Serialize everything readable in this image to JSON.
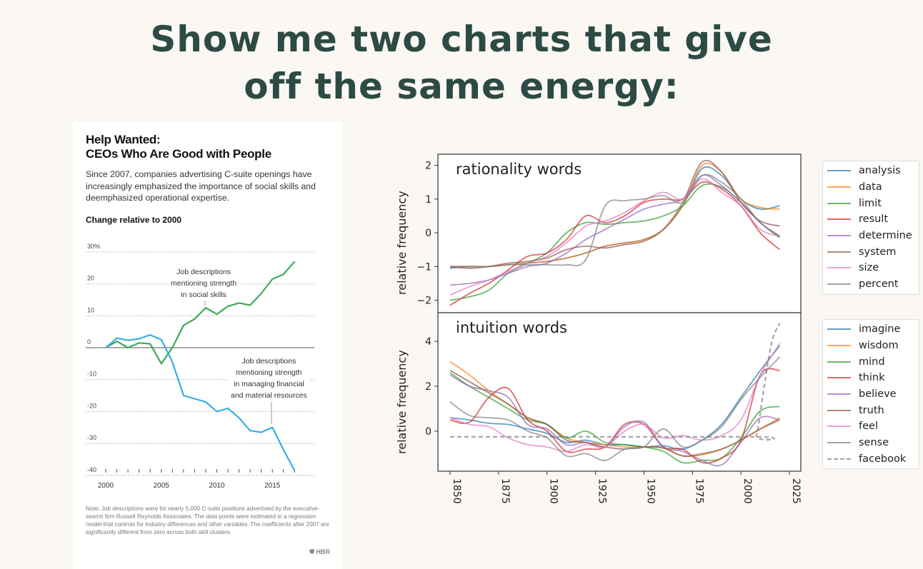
{
  "headline": {
    "line1": "Show me two charts that give",
    "line2": "off the same energy:"
  },
  "hbr": {
    "title_line1": "Help Wanted:",
    "title_line2": "CEOs Who Are Good with People",
    "subtitle": "Since 2007, companies advertising C-suite openings have increasingly emphasized the importance of social skills and deemphasized operational expertise.",
    "note": "Note: Job descriptions were for nearly 5,000 C-suite positions advertised by the executive-search firm Russell Reynolds Associates. The data points were estimated in a regression model that controls for industry differences and other variables. The coefficients after 2007 are significantly different from zero across both skill clusters.",
    "logo": "HBR"
  },
  "chart_data": [
    {
      "type": "line",
      "title": "Help Wanted: CEOs Who Are Good with People",
      "ylabel": "Change relative to 2000",
      "ylim": [
        -40,
        30
      ],
      "yticks": [
        "30%",
        "20",
        "10",
        "0",
        "-10",
        "-20",
        "-30",
        "-40"
      ],
      "ytick_values": [
        30,
        20,
        10,
        0,
        -10,
        -20,
        -30,
        -40
      ],
      "xticks": [
        "2000",
        "2005",
        "2010",
        "2015"
      ],
      "xtick_values": [
        2000,
        2005,
        2010,
        2015
      ],
      "grid": true,
      "x": [
        2000,
        2001,
        2002,
        2003,
        2004,
        2005,
        2006,
        2007,
        2008,
        2009,
        2010,
        2011,
        2012,
        2013,
        2014,
        2015,
        2016,
        2017
      ],
      "series": [
        {
          "name": "Job descriptions mentioning strength in social skills",
          "color": "#3bab5a",
          "values": [
            0,
            2,
            0,
            1.5,
            1.2,
            -5,
            0,
            7,
            9,
            12.5,
            10.5,
            13,
            14,
            13.3,
            17,
            21.5,
            23,
            27
          ]
        },
        {
          "name": "Job descriptions mentioning strength in managing financial and material resources",
          "color": "#39ade4",
          "values": [
            0,
            3,
            2.3,
            2.8,
            4,
            2.5,
            -4.5,
            -15,
            -16,
            -17,
            -20,
            -19,
            -22,
            -26,
            -26.5,
            -25,
            -32,
            -38.5
          ]
        }
      ],
      "annotations": [
        {
          "line1": "Job descriptions",
          "line2": "mentioning strength",
          "line3": "in social skills"
        },
        {
          "line1": "Job descriptions",
          "line2": "mentioning strength",
          "line3": "in managing financial",
          "line4": "and material resources"
        }
      ]
    },
    {
      "type": "line",
      "xlim": [
        1845,
        2027
      ],
      "xticks": [
        "1850",
        "1875",
        "1900",
        "1925",
        "1950",
        "1975",
        "2000",
        "2025"
      ],
      "xtick_values": [
        1850,
        1875,
        1900,
        1925,
        1950,
        1975,
        2000,
        2025
      ],
      "x": [
        1850,
        1860,
        1870,
        1880,
        1890,
        1900,
        1910,
        1920,
        1930,
        1940,
        1950,
        1960,
        1970,
        1980,
        1990,
        2000,
        2010,
        2020
      ],
      "panels": [
        {
          "title": "rationality words",
          "ylabel": "relative frequency",
          "ylim": [
            -2.37,
            2.33
          ],
          "yticks": [
            "2",
            "1",
            "0",
            "−1",
            "−2"
          ],
          "ytick_values": [
            2,
            1,
            0,
            -1,
            -2
          ],
          "series": [
            {
              "name": "analysis",
              "color": "#1f77b4",
              "values": [
                -1.05,
                -1.0,
                -1.0,
                -0.95,
                -0.9,
                -0.85,
                -0.75,
                -0.6,
                -0.4,
                -0.3,
                -0.2,
                0.1,
                0.8,
                1.9,
                1.7,
                1.0,
                0.7,
                0.8
              ]
            },
            {
              "name": "data",
              "color": "#ff7f0e",
              "values": [
                -1.0,
                -1.0,
                -1.0,
                -0.95,
                -0.9,
                -0.85,
                -0.75,
                -0.6,
                -0.4,
                -0.3,
                -0.2,
                0.1,
                0.8,
                2.0,
                1.8,
                1.0,
                0.75,
                0.7
              ]
            },
            {
              "name": "limit",
              "color": "#2ca02c",
              "values": [
                -2.0,
                -1.9,
                -1.7,
                -1.2,
                -0.9,
                -0.6,
                0.0,
                0.3,
                0.25,
                0.3,
                0.35,
                0.5,
                0.8,
                1.4,
                1.35,
                0.9,
                0.3,
                -0.15
              ]
            },
            {
              "name": "result",
              "color": "#d62728",
              "values": [
                -2.15,
                -1.8,
                -1.5,
                -1.1,
                -0.7,
                -0.6,
                -0.2,
                0.5,
                0.3,
                0.5,
                0.9,
                1.0,
                1.0,
                1.5,
                1.3,
                0.8,
                0.0,
                -0.5
              ]
            },
            {
              "name": "determine",
              "color": "#9467bd",
              "values": [
                -1.55,
                -1.5,
                -1.4,
                -1.2,
                -1.0,
                -0.9,
                -0.6,
                -0.2,
                0.1,
                0.4,
                0.7,
                0.85,
                1.0,
                1.7,
                1.4,
                0.9,
                0.3,
                -0.1
              ]
            },
            {
              "name": "system",
              "color": "#8c564b",
              "values": [
                -1.0,
                -1.05,
                -1.0,
                -0.9,
                -0.85,
                -0.75,
                -0.5,
                -0.4,
                -0.45,
                -0.35,
                -0.25,
                0.1,
                0.9,
                2.1,
                1.8,
                0.9,
                0.35,
                0.2
              ]
            },
            {
              "name": "size",
              "color": "#e377c2",
              "values": [
                -1.85,
                -1.6,
                -1.4,
                -1.15,
                -0.9,
                -0.7,
                -0.3,
                0.2,
                0.35,
                0.6,
                0.95,
                1.2,
                1.0,
                1.6,
                1.2,
                0.8,
                0.1,
                -0.1
              ]
            },
            {
              "name": "percent",
              "color": "#7f7f7f",
              "values": [
                -1.0,
                -1.0,
                -1.0,
                -0.95,
                -0.95,
                -0.95,
                -0.95,
                -0.8,
                0.8,
                0.95,
                1.0,
                1.1,
                0.9,
                1.7,
                1.5,
                1.0,
                0.3,
                -0.1
              ]
            }
          ]
        },
        {
          "title": "intuition words",
          "ylabel": "relative frequency",
          "ylim": [
            -1.78,
            5.27
          ],
          "yticks": [
            "4",
            "2",
            "0"
          ],
          "ytick_values": [
            4,
            2,
            0
          ],
          "series": [
            {
              "name": "imagine",
              "color": "#1f77b4",
              "values": [
                0.6,
                0.5,
                0.35,
                0.3,
                0.1,
                -0.1,
                -0.5,
                -0.4,
                -0.6,
                -0.6,
                -0.7,
                -0.65,
                -0.8,
                -0.4,
                0.3,
                1.5,
                2.7,
                3.8
              ]
            },
            {
              "name": "wisdom",
              "color": "#ff7f0e",
              "values": [
                3.1,
                2.5,
                1.8,
                1.2,
                0.6,
                0.3,
                -0.3,
                -0.5,
                -0.6,
                -0.7,
                -0.7,
                -0.75,
                -1.1,
                -1.05,
                -0.8,
                -0.4,
                0.1,
                0.6
              ]
            },
            {
              "name": "mind",
              "color": "#2ca02c",
              "values": [
                2.6,
                2.0,
                1.5,
                1.0,
                0.5,
                0.3,
                -0.3,
                0.0,
                -0.5,
                -0.6,
                -0.7,
                -0.9,
                -1.4,
                -1.3,
                -1.2,
                -0.3,
                0.9,
                1.1
              ]
            },
            {
              "name": "think",
              "color": "#d62728",
              "values": [
                0.5,
                0.4,
                1.5,
                1.9,
                0.5,
                0.0,
                -0.9,
                -0.8,
                -0.7,
                0.3,
                0.3,
                -0.7,
                -0.8,
                -1.4,
                -1.2,
                -0.4,
                2.5,
                2.7
              ]
            },
            {
              "name": "believe",
              "color": "#9467bd",
              "values": [
                2.5,
                2.0,
                1.8,
                1.5,
                0.3,
                0.1,
                -0.6,
                -0.5,
                -0.7,
                0.2,
                0.4,
                -0.7,
                -0.9,
                -1.3,
                -1.5,
                -0.5,
                0.6,
                0.5
              ]
            },
            {
              "name": "truth",
              "color": "#8c564b",
              "values": [
                2.7,
                2.2,
                1.7,
                1.2,
                0.6,
                0.3,
                -0.4,
                -0.5,
                -0.7,
                -0.8,
                -0.7,
                -0.75,
                -1.1,
                -1.0,
                -0.8,
                -0.4,
                0.1,
                0.5
              ]
            },
            {
              "name": "feel",
              "color": "#e377c2",
              "values": [
                0.6,
                0.3,
                0.2,
                -0.3,
                -0.6,
                -0.7,
                -0.9,
                -0.6,
                -0.7,
                0.0,
                0.3,
                -0.3,
                -0.2,
                -0.4,
                -0.2,
                0.5,
                2.5,
                3.9
              ]
            },
            {
              "name": "sense",
              "color": "#7f7f7f",
              "values": [
                1.3,
                0.7,
                0.6,
                0.5,
                0.0,
                -0.3,
                -1.1,
                -1.0,
                -1.3,
                -0.8,
                -0.7,
                0.1,
                -0.7,
                -0.4,
                0.2,
                1.4,
                2.4,
                3.3
              ]
            },
            {
              "name": "facebook",
              "color": "#7f7f7f",
              "dashed": true,
              "x": [
                1850,
                2005,
                2008,
                2012,
                2016,
                2020
              ],
              "values": [
                -0.25,
                -0.25,
                -0.2,
                2.0,
                4.0,
                4.8
              ]
            }
          ]
        }
      ]
    }
  ]
}
